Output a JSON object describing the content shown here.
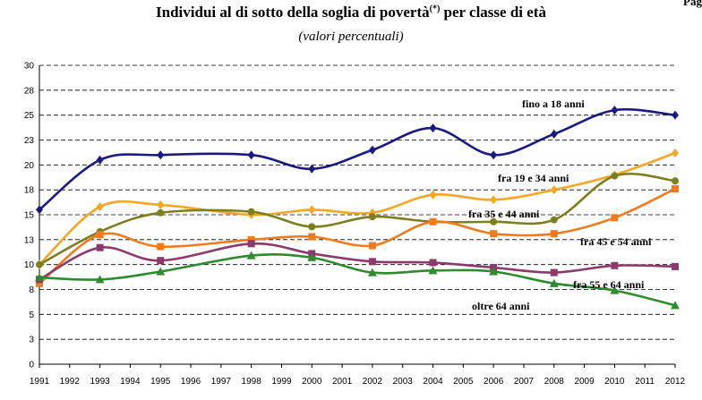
{
  "title_main": "Individui al di sotto della soglia di povertà",
  "title_note": "(*)",
  "title_tail": " per classe di età",
  "corner_text": "Pag",
  "chart_data": {
    "type": "line",
    "title": "Individui al di sotto della soglia di povertà(*) per classe di età",
    "subtitle": "(valori percentuali)",
    "xlabel": "",
    "ylabel": "",
    "x": [
      "1991",
      "1992",
      "1993",
      "1994",
      "1995",
      "1996",
      "1997",
      "1998",
      "1999",
      "2000",
      "2001",
      "2002",
      "2003",
      "2004",
      "2005",
      "2006",
      "2007",
      "2008",
      "2009",
      "2010",
      "2011",
      "2012"
    ],
    "ylim": [
      0,
      30
    ],
    "yticks": [
      0,
      3,
      5,
      8,
      10,
      13,
      15,
      18,
      20,
      23,
      25,
      28,
      30
    ],
    "grid": true,
    "series": [
      {
        "name": "fino a 18 anni",
        "color": "#1a1a80",
        "marker": "diamond",
        "points": [
          [
            1991,
            15.5
          ],
          [
            1993,
            20.5
          ],
          [
            1995,
            21.0
          ],
          [
            1998,
            21.0
          ],
          [
            2000,
            19.6
          ],
          [
            2002,
            21.5
          ],
          [
            2004,
            23.7
          ],
          [
            2006,
            21.0
          ],
          [
            2008,
            23.1
          ],
          [
            2010,
            25.5
          ],
          [
            2012,
            25.0
          ]
        ]
      },
      {
        "name": "fra 19 e 34 anni",
        "color": "#f5a623",
        "marker": "diamond",
        "points": [
          [
            1991,
            10.0
          ],
          [
            1993,
            15.8
          ],
          [
            1995,
            16.0
          ],
          [
            1998,
            15.0
          ],
          [
            2000,
            15.5
          ],
          [
            2002,
            15.2
          ],
          [
            2004,
            17.0
          ],
          [
            2006,
            16.5
          ],
          [
            2008,
            17.5
          ],
          [
            2010,
            19.0
          ],
          [
            2012,
            21.2
          ]
        ]
      },
      {
        "name": "fra 35 e 44 anni",
        "color": "#7b7f1e",
        "marker": "circle",
        "points": [
          [
            1991,
            10.0
          ],
          [
            1993,
            13.3
          ],
          [
            1995,
            15.2
          ],
          [
            1998,
            15.3
          ],
          [
            2000,
            13.8
          ],
          [
            2002,
            14.8
          ],
          [
            2004,
            14.3
          ],
          [
            2006,
            14.3
          ],
          [
            2008,
            14.5
          ],
          [
            2010,
            18.9
          ],
          [
            2012,
            18.4
          ]
        ]
      },
      {
        "name": "fra 45 e 54 anni",
        "color": "#f07a1e",
        "marker": "square",
        "points": [
          [
            1991,
            8.1
          ],
          [
            1993,
            13.0
          ],
          [
            1995,
            11.8
          ],
          [
            1998,
            12.5
          ],
          [
            2000,
            12.8
          ],
          [
            2002,
            11.9
          ],
          [
            2004,
            14.3
          ],
          [
            2006,
            13.1
          ],
          [
            2008,
            13.1
          ],
          [
            2010,
            14.7
          ],
          [
            2012,
            17.6
          ]
        ]
      },
      {
        "name": "fra 55 e 64 anni",
        "color": "#8b3a6b",
        "marker": "square",
        "points": [
          [
            1991,
            8.5
          ],
          [
            1993,
            11.7
          ],
          [
            1995,
            10.4
          ],
          [
            1998,
            12.1
          ],
          [
            2000,
            11.1
          ],
          [
            2002,
            10.3
          ],
          [
            2004,
            10.2
          ],
          [
            2006,
            9.7
          ],
          [
            2008,
            9.2
          ],
          [
            2010,
            9.9
          ],
          [
            2012,
            9.8
          ]
        ]
      },
      {
        "name": "oltre 64 anni",
        "color": "#2e8b2e",
        "marker": "triangle",
        "points": [
          [
            1991,
            8.7
          ],
          [
            1993,
            8.5
          ],
          [
            1995,
            9.3
          ],
          [
            1998,
            10.9
          ],
          [
            2000,
            10.7
          ],
          [
            2002,
            9.2
          ],
          [
            2004,
            9.4
          ],
          [
            2006,
            9.3
          ],
          [
            2008,
            8.1
          ],
          [
            2010,
            7.4
          ],
          [
            2012,
            5.9
          ]
        ]
      }
    ]
  }
}
